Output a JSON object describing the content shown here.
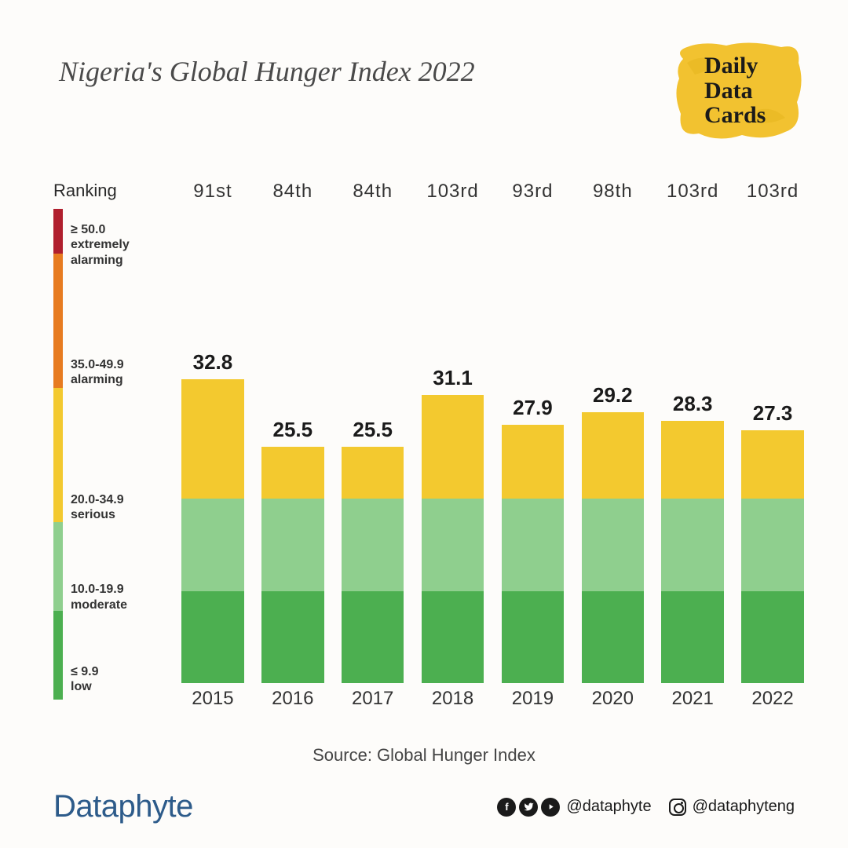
{
  "title": "Nigeria's Global Hunger Index 2022",
  "logo": {
    "line1": "Daily",
    "line2": "Data",
    "line3": "Cards",
    "bg_color": "#f2c230"
  },
  "legend": {
    "title": "Ranking",
    "scale_max": 55,
    "bands": [
      {
        "label": "≥ 50.0\nextremely\nalarming",
        "from": 50.0,
        "to": 55.0,
        "color": "#b01f2e"
      },
      {
        "label": "35.0-49.9\nalarming",
        "from": 35.0,
        "to": 49.9,
        "color": "#e77b20"
      },
      {
        "label": "20.0-34.9\nserious",
        "from": 20.0,
        "to": 34.9,
        "color": "#f3c92f"
      },
      {
        "label": "10.0-19.9\nmoderate",
        "from": 10.0,
        "to": 19.9,
        "color": "#8fcf8e"
      },
      {
        "label": "≤ 9.9\nlow",
        "from": 0.0,
        "to": 9.9,
        "color": "#4caf50"
      }
    ]
  },
  "chart": {
    "type": "bar",
    "y_max": 50,
    "thresholds": {
      "low_max": 9.9,
      "moderate_max": 19.9
    },
    "colors": {
      "low": "#4caf50",
      "moderate": "#8fcf8e",
      "serious": "#f3c92f"
    },
    "value_fontsize": 26,
    "year_fontsize": 24,
    "rank_fontsize": 24,
    "bar_width_pct": 78,
    "background": "#fdfcfa",
    "data": [
      {
        "year": "2015",
        "rank": "91st",
        "value": 32.8
      },
      {
        "year": "2016",
        "rank": "84th",
        "value": 25.5
      },
      {
        "year": "2017",
        "rank": "84th",
        "value": 25.5
      },
      {
        "year": "2018",
        "rank": "103rd",
        "value": 31.1
      },
      {
        "year": "2019",
        "rank": "93rd",
        "value": 27.9
      },
      {
        "year": "2020",
        "rank": "98th",
        "value": 29.2
      },
      {
        "year": "2021",
        "rank": "103rd",
        "value": 28.3
      },
      {
        "year": "2022",
        "rank": "103rd",
        "value": 27.3
      }
    ]
  },
  "source": "Source: Global Hunger Index",
  "footer": {
    "brand": "Dataphyte",
    "brand_color": "#2d5b8a",
    "handle1": "@dataphyte",
    "handle2": "@dataphyteng"
  }
}
